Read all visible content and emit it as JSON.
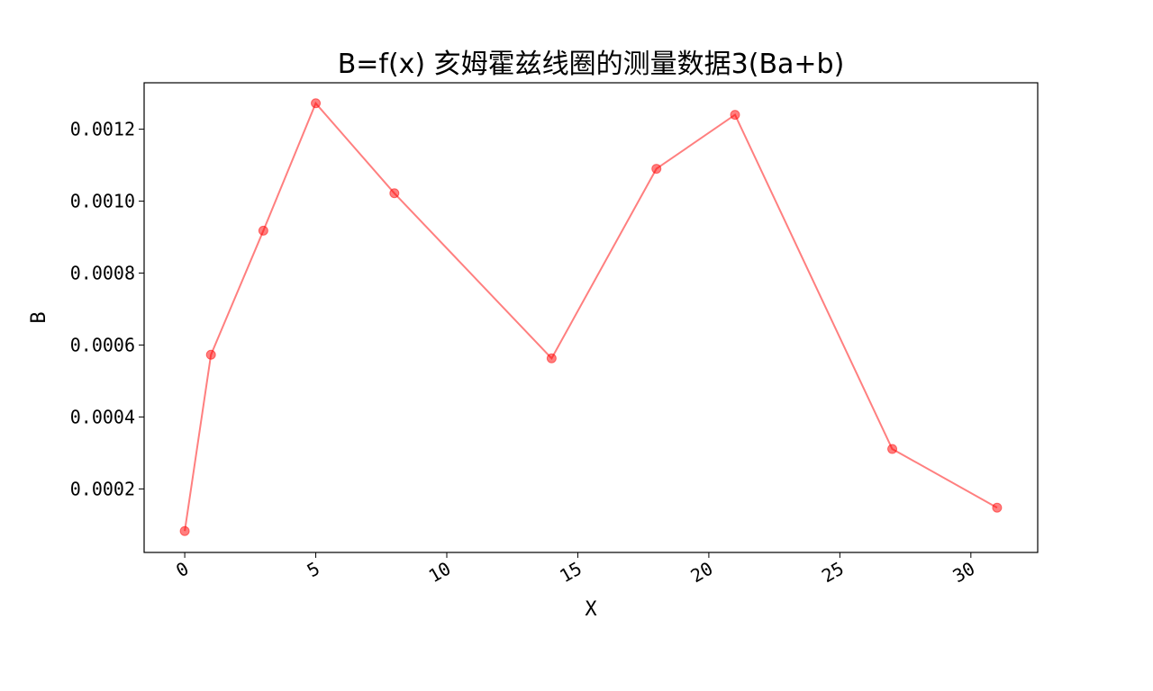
{
  "chart_data": {
    "type": "line",
    "title": "B=f(x)  亥姆霍兹线圈的测量数据3(Ba+b)",
    "xlabel": "X",
    "ylabel": "B",
    "xlim": [
      -1.55,
      32.55
    ],
    "ylim": [
      2.35e-05,
      0.001329
    ],
    "x_ticks": [
      0,
      5,
      10,
      15,
      20,
      25,
      30
    ],
    "y_ticks": [
      0.0002,
      0.0004,
      0.0006,
      0.0008,
      0.001,
      0.0012
    ],
    "x_tick_labels": [
      "0",
      "5",
      "10",
      "15",
      "20",
      "25",
      "30"
    ],
    "y_tick_labels": [
      "0.0002",
      "0.0004",
      "0.0006",
      "0.0008",
      "0.0010",
      "0.0012"
    ],
    "grid": false,
    "series": [
      {
        "x": [
          0,
          1,
          3,
          5,
          8,
          14,
          18,
          21,
          27,
          31
        ],
        "y": [
          8.3e-05,
          0.000573,
          0.000918,
          0.001272,
          0.001022,
          0.000563,
          0.00109,
          0.00124,
          0.000311,
          0.000148
        ],
        "color": "#ff0000"
      }
    ]
  }
}
